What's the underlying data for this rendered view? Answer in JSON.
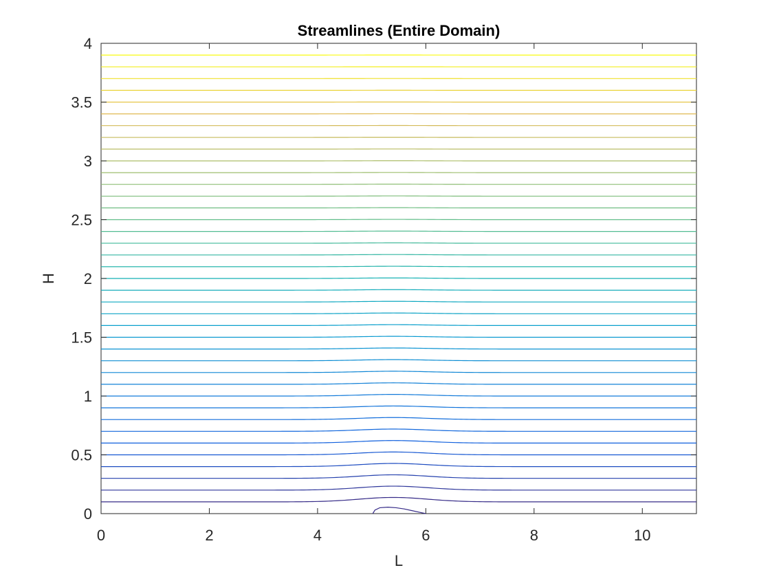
{
  "chart_data": {
    "type": "line",
    "title": "Streamlines (Entire Domain)",
    "xlabel": "L",
    "ylabel": "H",
    "xlim": [
      0,
      11
    ],
    "ylim": [
      0,
      4
    ],
    "xticks": [
      0,
      2,
      4,
      6,
      8,
      10
    ],
    "yticks": [
      0,
      0.5,
      1,
      1.5,
      2,
      2.5,
      3,
      3.5,
      4
    ],
    "xtick_labels": [
      "0",
      "2",
      "4",
      "6",
      "8",
      "10"
    ],
    "ytick_labels": [
      "0",
      "0.5",
      "1",
      "1.5",
      "2",
      "2.5",
      "3",
      "3.5",
      "4"
    ],
    "grid": false,
    "colormap": "parula",
    "streamline_levels": {
      "start": 0.1,
      "step": 0.1,
      "count": 39,
      "bump_center_x": 5.4,
      "bump_half_width": 0.9
    },
    "separation_bubble": {
      "x": [
        5.02,
        5.06,
        5.15,
        5.3,
        5.45,
        5.6,
        5.75,
        5.9,
        6.0
      ],
      "y": [
        0.0,
        0.03,
        0.05,
        0.055,
        0.05,
        0.04,
        0.025,
        0.01,
        0.0
      ]
    }
  }
}
